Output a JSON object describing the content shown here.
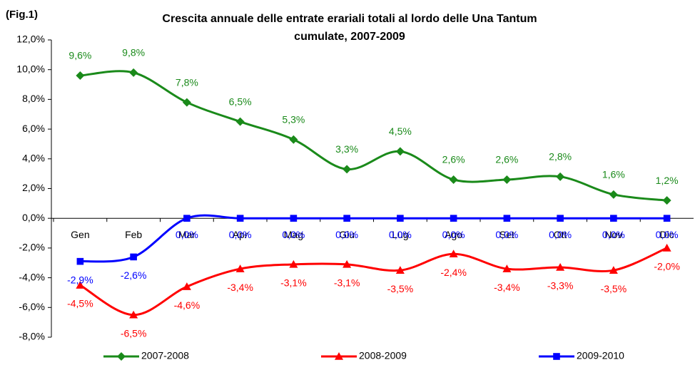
{
  "chart_data": {
    "type": "line",
    "figure_label": "(Fig.1)",
    "title": "Crescita annuale delle entrate erariali totali al lordo delle Una Tantum cumulate, 2007-2009",
    "categories": [
      "Gen",
      "Feb",
      "Mar",
      "Apr",
      "Mag",
      "Giu",
      "Lug",
      "Ago",
      "Set",
      "Ott",
      "Nov",
      "Dic"
    ],
    "series": [
      {
        "name": "2007-2008",
        "color": "#1a8a1a",
        "marker": "diamond",
        "values": [
          9.6,
          9.8,
          7.8,
          6.5,
          5.3,
          3.3,
          4.5,
          2.6,
          2.6,
          2.8,
          1.6,
          1.2
        ],
        "value_labels": [
          "9,6%",
          "9,8%",
          "7,8%",
          "6,5%",
          "5,3%",
          "3,3%",
          "4,5%",
          "2,6%",
          "2,6%",
          "2,8%",
          "1,6%",
          "1,2%"
        ]
      },
      {
        "name": "2008-2009",
        "color": "#ff0000",
        "marker": "triangle",
        "values": [
          -4.5,
          -6.5,
          -4.6,
          -3.4,
          -3.1,
          -3.1,
          -3.5,
          -2.4,
          -3.4,
          -3.3,
          -3.5,
          -2.0
        ],
        "value_labels": [
          "-4,5%",
          "-6,5%",
          "-4,6%",
          "-3,4%",
          "-3,1%",
          "-3,1%",
          "-3,5%",
          "-2,4%",
          "-3,4%",
          "-3,3%",
          "-3,5%",
          "-2,0%"
        ]
      },
      {
        "name": "2009-2010",
        "color": "#0000ff",
        "marker": "square",
        "values": [
          -2.9,
          -2.6,
          0.0,
          0.0,
          0.0,
          0.0,
          0.0,
          0.0,
          0.0,
          0.0,
          0.0,
          0.0
        ],
        "value_labels": [
          "-2,9%",
          "-2,6%",
          "0,0%",
          "0,0%",
          "0,0%",
          "0,0%",
          "0,0%",
          "0,0%",
          "0,0%",
          "0,0%",
          "0,0%",
          "0,0%"
        ]
      }
    ],
    "ylim": [
      -8,
      12
    ],
    "yticks": [
      {
        "value": -8,
        "label": "-8,0%"
      },
      {
        "value": -6,
        "label": "-6,0%"
      },
      {
        "value": -4,
        "label": "-4,0%"
      },
      {
        "value": -2,
        "label": "-2,0%"
      },
      {
        "value": 0,
        "label": "0,0%"
      },
      {
        "value": 2,
        "label": "2,0%"
      },
      {
        "value": 4,
        "label": "4,0%"
      },
      {
        "value": 6,
        "label": "6,0%"
      },
      {
        "value": 8,
        "label": "8,0%"
      },
      {
        "value": 10,
        "label": "10,0%"
      },
      {
        "value": 12,
        "label": "12,0%"
      }
    ],
    "grid": false,
    "legend": "bottom"
  }
}
